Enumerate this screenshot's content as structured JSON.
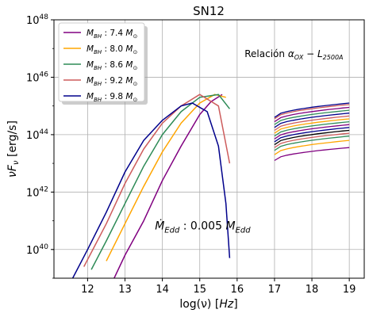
{
  "chart_data": {
    "type": "line",
    "title": "SN12",
    "xlabel": "log(ν) [Hz]",
    "ylabel": "νFν [erg/s]",
    "xlim": [
      11.1,
      19.4
    ],
    "ylim_log10": [
      39.0,
      48.0
    ],
    "y_scale": "log",
    "grid": true,
    "x_ticks": [
      12,
      13,
      14,
      15,
      16,
      17,
      18,
      19
    ],
    "x_tick_labels": [
      "12",
      "13",
      "14",
      "15",
      "16",
      "17",
      "18",
      "19"
    ],
    "y_ticks_log10": [
      40,
      42,
      44,
      46,
      48
    ],
    "y_tick_labels": [
      "10^40",
      "10^42",
      "10^44",
      "10^46",
      "10^48"
    ],
    "legend_position": "top-left",
    "annotations": [
      {
        "text": "Relación αOX − L2500A",
        "x": 16.2,
        "y_log10": 46.7
      },
      {
        "text": "ṀEdd : 0.005 MEdd",
        "x": 13.8,
        "y_log10": 40.7
      }
    ],
    "series": [
      {
        "name": "MBH : 7.4 M⊙",
        "color": "#800080",
        "x": [
          12.6,
          13.0,
          13.5,
          14.0,
          14.5,
          15.0,
          15.3,
          15.6
        ],
        "y_log10": [
          38.7,
          39.8,
          41.0,
          42.4,
          43.6,
          44.7,
          45.15,
          45.4
        ]
      },
      {
        "name": "MBH : 8.0 M⊙",
        "color": "#ffa500",
        "x": [
          12.5,
          13.0,
          13.5,
          14.0,
          14.5,
          15.0,
          15.4,
          15.7
        ],
        "y_log10": [
          39.6,
          40.9,
          42.2,
          43.4,
          44.4,
          45.1,
          45.4,
          45.3
        ]
      },
      {
        "name": "MBH : 8.6 M⊙",
        "color": "#2e8b57",
        "x": [
          12.1,
          12.5,
          13.0,
          13.5,
          14.0,
          14.5,
          15.0,
          15.5,
          15.8
        ],
        "y_log10": [
          39.3,
          40.3,
          41.6,
          42.9,
          44.0,
          44.8,
          45.3,
          45.4,
          44.9
        ]
      },
      {
        "name": "MBH : 9.2 M⊙",
        "color": "#cd5c5c",
        "x": [
          11.9,
          12.5,
          13.0,
          13.5,
          14.0,
          14.5,
          15.0,
          15.5,
          15.8
        ],
        "y_log10": [
          39.4,
          40.9,
          42.3,
          43.5,
          44.4,
          45.0,
          45.4,
          45.0,
          43.0
        ]
      },
      {
        "name": "MBH : 9.8 M⊙",
        "color": "#00008b",
        "x": [
          11.6,
          12.0,
          12.5,
          13.0,
          13.5,
          14.0,
          14.5,
          14.8,
          15.2,
          15.5,
          15.7,
          15.8
        ],
        "y_log10": [
          39.0,
          40.0,
          41.3,
          42.7,
          43.8,
          44.5,
          45.0,
          45.1,
          44.8,
          43.6,
          41.6,
          39.7
        ]
      }
    ],
    "xray_lines": {
      "x_start": 17.0,
      "x_end": 19.0,
      "lines": [
        {
          "color": "#800080",
          "y_start_log10": 43.1,
          "y_end_log10": 43.55
        },
        {
          "color": "#ffa500",
          "y_start_log10": 43.3,
          "y_end_log10": 43.8
        },
        {
          "color": "#2e8b57",
          "y_start_log10": 43.45,
          "y_end_log10": 43.95
        },
        {
          "color": "#cd5c5c",
          "y_start_log10": 43.55,
          "y_end_log10": 44.05
        },
        {
          "color": "#000000",
          "y_start_log10": 43.65,
          "y_end_log10": 44.15
        },
        {
          "color": "#00008b",
          "y_start_log10": 43.75,
          "y_end_log10": 44.25
        },
        {
          "color": "#800080",
          "y_start_log10": 43.85,
          "y_end_log10": 44.35
        },
        {
          "color": "#2e8b57",
          "y_start_log10": 43.95,
          "y_end_log10": 44.45
        },
        {
          "color": "#ffa500",
          "y_start_log10": 44.05,
          "y_end_log10": 44.55
        },
        {
          "color": "#cd5c5c",
          "y_start_log10": 44.15,
          "y_end_log10": 44.65
        },
        {
          "color": "#00008b",
          "y_start_log10": 44.25,
          "y_end_log10": 44.75
        },
        {
          "color": "#2e8b57",
          "y_start_log10": 44.35,
          "y_end_log10": 44.85
        },
        {
          "color": "#800080",
          "y_start_log10": 44.45,
          "y_end_log10": 44.95
        },
        {
          "color": "#cd5c5c",
          "y_start_log10": 44.55,
          "y_end_log10": 45.05
        },
        {
          "color": "#00008b",
          "y_start_log10": 44.6,
          "y_end_log10": 45.1
        }
      ]
    }
  }
}
